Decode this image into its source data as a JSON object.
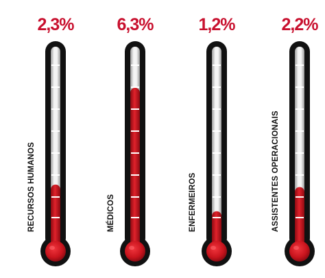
{
  "chart_data": {
    "type": "bar",
    "categories": [
      "RECURSOS HUMANOS",
      "MÉDICOS",
      "ENFERMEIROS",
      "ASSISTENTES OPERACIONAIS"
    ],
    "values": [
      2.3,
      6.3,
      1.2,
      2.2
    ],
    "value_labels": [
      "2,3%",
      "6,3%",
      "1,2%",
      "2,2%"
    ],
    "ylim": [
      0,
      8
    ],
    "colors": {
      "value_text": "#c8102e",
      "mercury": "#d41a23",
      "mercury_dark": "#8e0a12",
      "tube_outline": "#111111",
      "tube_glass": "#e4e4e4",
      "tick": "#ffffff",
      "category_text": "#111111"
    }
  }
}
